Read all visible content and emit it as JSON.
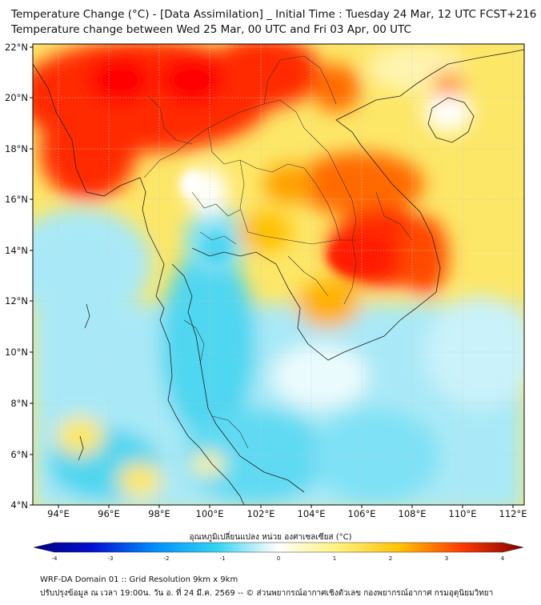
{
  "title": {
    "line1": "Temperature Change (°C) - [Data Assimilation] _ Initial Time : Tuesday 24 Mar, 12 UTC FCST+216",
    "line2": "Temperature change between Wed 25 Mar, 00 UTC and Fri 03 Apr, 00 UTC"
  },
  "axes": {
    "lat_ticks": [
      "4°N",
      "6°N",
      "8°N",
      "10°N",
      "12°N",
      "14°N",
      "16°N",
      "18°N",
      "20°N",
      "22°N"
    ],
    "lon_ticks": [
      "94°E",
      "96°E",
      "98°E",
      "100°E",
      "102°E",
      "104°E",
      "106°E",
      "108°E",
      "110°E",
      "112°E"
    ],
    "lat_range": [
      4,
      22.3
    ],
    "lon_range": [
      93.1,
      112.8
    ]
  },
  "colorbar": {
    "label": "อุณหภูมิเปลี่ยนแปลง หน่วย องศาเซลเซียส (°C)",
    "ticks": [
      "-4",
      "-3",
      "-2",
      "-1",
      "0",
      "1",
      "2",
      "3",
      "4"
    ],
    "range": [
      -4,
      4
    ]
  },
  "footer": {
    "line1": "WRF-DA Domain 01 :: Grid Resolution 9km x 9km",
    "line2": "ปรับปรุงข้อมูล ณ เวลา 19:00น. วัน อ. ที่ 24 มี.ค. 2569 -- © ส่วนพยากรณ์อากาศเชิงตัวเลข กองพยากรณ์อากาศ กรมอุตุนิยมวิทยา"
  },
  "colors": {
    "hot": "#ff2200",
    "warm": "#ffb300",
    "mild": "#fff59a",
    "neutral": "#ffffff",
    "cool": "#b8eefa",
    "cold": "#33d4f2"
  }
}
